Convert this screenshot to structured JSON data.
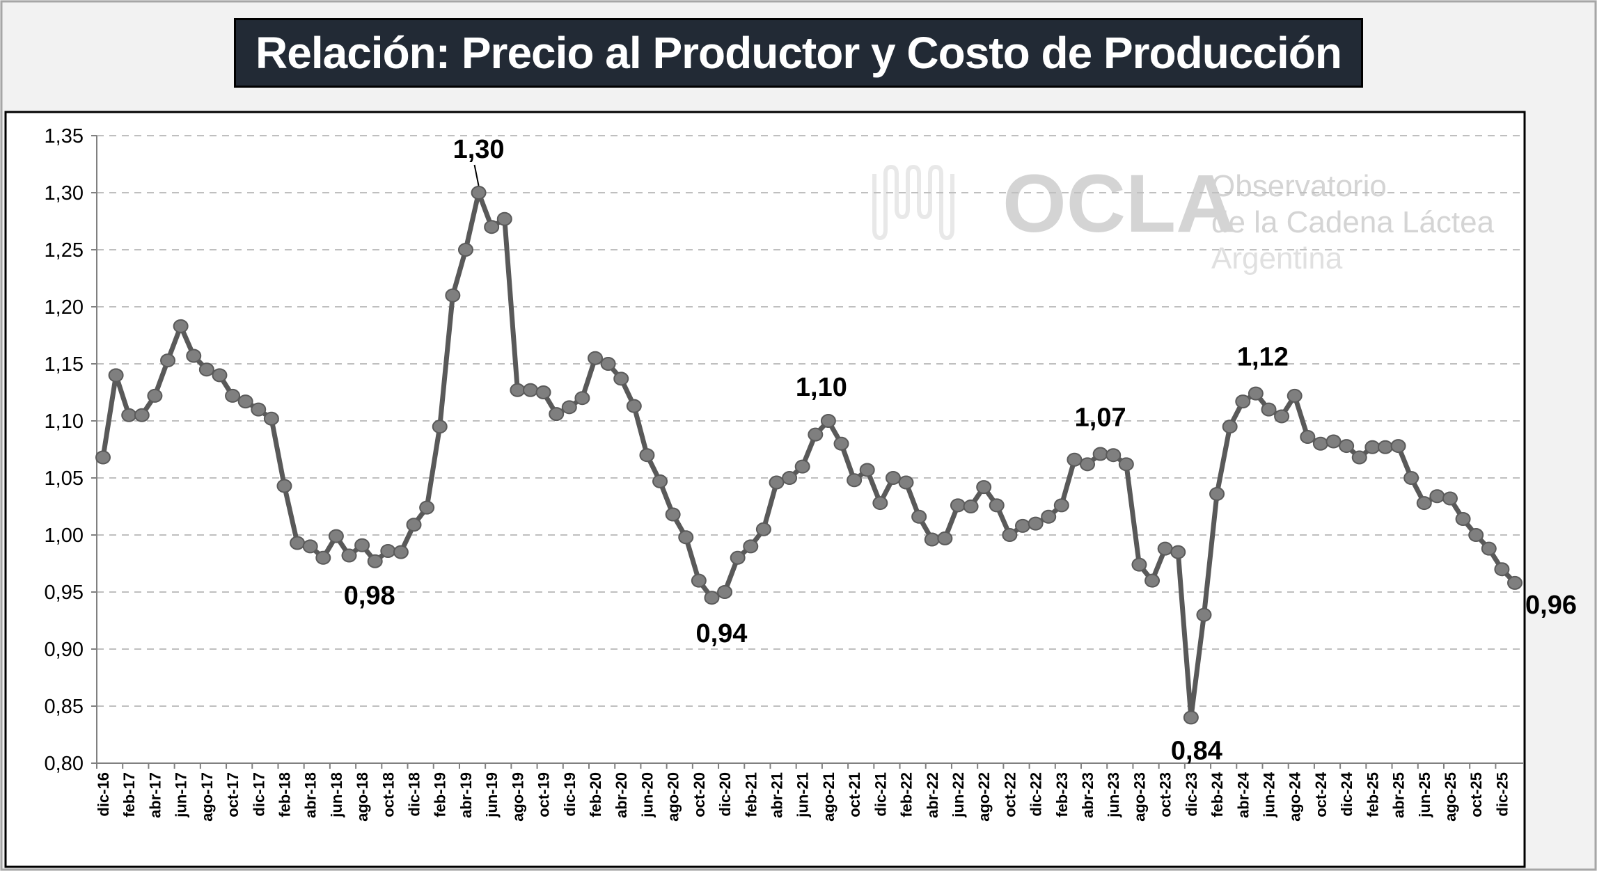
{
  "chart_data": {
    "type": "line",
    "title": "Relación: Precio al Productor y Costo de Producción",
    "xlabel": "",
    "ylabel": "",
    "ylim": [
      0.8,
      1.35
    ],
    "y_ticks": [
      "0,80",
      "0,85",
      "0,90",
      "0,95",
      "1,00",
      "1,05",
      "1,10",
      "1,15",
      "1,20",
      "1,25",
      "1,30",
      "1,35"
    ],
    "grid": "horizontal dashed",
    "series_color": "#595959",
    "marker_color": "#7f7f7f",
    "x": [
      "dic-16",
      "ene-17",
      "feb-17",
      "mar-17",
      "abr-17",
      "may-17",
      "jun-17",
      "jul-17",
      "ago-17",
      "sep-17",
      "oct-17",
      "nov-17",
      "dic-17",
      "ene-18",
      "feb-18",
      "mar-18",
      "abr-18",
      "may-18",
      "jun-18",
      "jul-18",
      "ago-18",
      "sep-18",
      "oct-18",
      "nov-18",
      "dic-18",
      "ene-19",
      "feb-19",
      "mar-19",
      "abr-19",
      "may-19",
      "jun-19",
      "jul-19",
      "ago-19",
      "sep-19",
      "oct-19",
      "nov-19",
      "dic-19",
      "ene-20",
      "feb-20",
      "mar-20",
      "abr-20",
      "may-20",
      "jun-20",
      "jul-20",
      "ago-20",
      "sep-20",
      "oct-20",
      "nov-20",
      "dic-20",
      "ene-21",
      "feb-21",
      "mar-21",
      "abr-21",
      "may-21",
      "jun-21",
      "jul-21",
      "ago-21",
      "sep-21",
      "oct-21",
      "nov-21",
      "dic-21",
      "ene-22",
      "feb-22",
      "mar-22",
      "abr-22",
      "may-22",
      "jun-22",
      "jul-22",
      "ago-22",
      "sep-22",
      "oct-22",
      "nov-22",
      "dic-22",
      "ene-23",
      "feb-23",
      "mar-23",
      "abr-23",
      "may-23",
      "jun-23",
      "jul-23",
      "ago-23",
      "sep-23",
      "oct-23",
      "nov-23",
      "dic-23",
      "ene-24",
      "feb-24",
      "mar-24",
      "abr-24",
      "may-24",
      "jun-24",
      "jul-24",
      "ago-24",
      "sep-24",
      "oct-24",
      "nov-24",
      "dic-24",
      "ene-25",
      "feb-25",
      "mar-25",
      "abr-25",
      "may-25",
      "jun-25",
      "jul-25",
      "ago-25",
      "sep-25",
      "oct-25",
      "nov-25",
      "dic-25",
      "ene-26"
    ],
    "values": [
      1.068,
      1.14,
      1.105,
      1.105,
      1.122,
      1.153,
      1.183,
      1.157,
      1.145,
      1.14,
      1.122,
      1.117,
      1.11,
      1.102,
      1.043,
      0.993,
      0.99,
      0.98,
      0.999,
      0.982,
      0.991,
      0.977,
      0.986,
      0.985,
      1.009,
      1.024,
      1.095,
      1.21,
      1.25,
      1.3,
      1.27,
      1.277,
      1.127,
      1.127,
      1.125,
      1.106,
      1.112,
      1.12,
      1.155,
      1.15,
      1.137,
      1.113,
      1.07,
      1.047,
      1.018,
      0.998,
      0.96,
      0.945,
      0.95,
      0.98,
      0.99,
      1.005,
      1.046,
      1.05,
      1.06,
      1.088,
      1.1,
      1.08,
      1.048,
      1.057,
      1.028,
      1.05,
      1.046,
      1.016,
      0.996,
      0.997,
      1.026,
      1.025,
      1.042,
      1.026,
      1.0,
      1.008,
      1.01,
      1.016,
      1.026,
      1.066,
      1.062,
      1.071,
      1.07,
      1.062,
      0.974,
      0.96,
      0.988,
      0.985,
      0.84,
      0.93,
      1.036,
      1.095,
      1.117,
      1.124,
      1.11,
      1.104,
      1.122,
      1.086,
      1.08,
      1.082,
      1.078,
      1.068,
      1.077,
      1.077,
      1.078,
      1.05,
      1.028,
      1.034,
      1.032,
      1.014,
      1.0,
      0.988,
      0.97,
      0.958
    ],
    "annotations": [
      {
        "label": "1,30",
        "at": "may-19"
      },
      {
        "label": "0,98",
        "at": "sep-18"
      },
      {
        "label": "0,94",
        "at": "nov-20"
      },
      {
        "label": "1,10",
        "at": "ago-21"
      },
      {
        "label": "1,07",
        "at": "may-23"
      },
      {
        "label": "0,84",
        "at": "dic-23"
      },
      {
        "label": "1,12",
        "at": "may-24"
      },
      {
        "label": "0,96",
        "at": "ene-26"
      }
    ]
  },
  "watermark": {
    "logo": "OCLA",
    "line1": "Observatorio",
    "line2": "de la Cadena Láctea",
    "line3": "Argentina"
  }
}
